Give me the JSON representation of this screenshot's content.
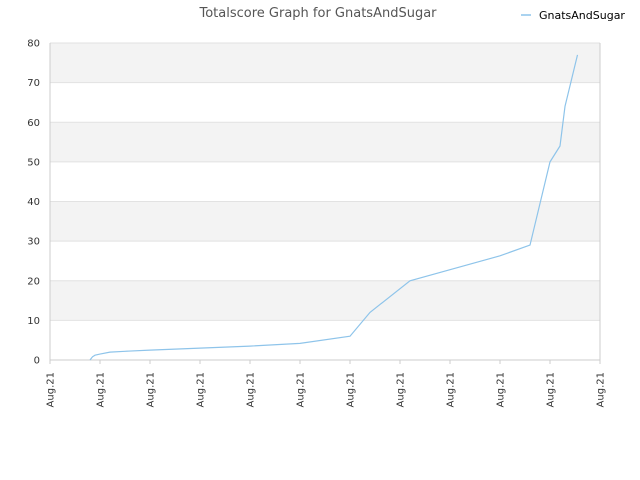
{
  "chart_data": {
    "type": "line",
    "title": "Totalscore Graph for GnatsAndSugar",
    "xlabel": "",
    "ylabel": "",
    "ylim": [
      0,
      80
    ],
    "yticks": [
      0,
      10,
      20,
      30,
      40,
      50,
      60,
      70,
      80
    ],
    "xtick_labels": [
      "Aug.21",
      "Aug.21",
      "Aug.21",
      "Aug.21",
      "Aug.21",
      "Aug.21",
      "Aug.21",
      "Aug.21",
      "Aug.21",
      "Aug.21",
      "Aug.21",
      "Aug.21"
    ],
    "grid": "horizontal bands",
    "legend": {
      "position": "top-right"
    },
    "colors": {
      "line": "#8ec4ea",
      "band": "#f3f3f3",
      "grid": "#e2e2e2",
      "axis": "#cccccc"
    },
    "series": [
      {
        "name": "GnatsAndSugar",
        "x": [
          0.8,
          0.85,
          0.9,
          1.0,
          1.2,
          1.5,
          2.0,
          3.0,
          4.0,
          5.0,
          6.0,
          6.4,
          7.2,
          8.0,
          9.0,
          9.6,
          10.0,
          10.2,
          10.3,
          10.55
        ],
        "y": [
          0,
          0.8,
          1.2,
          1.5,
          2.0,
          2.2,
          2.5,
          3.0,
          3.5,
          4.2,
          6.0,
          12.0,
          20.0,
          22.8,
          26.3,
          29.0,
          50.0,
          54.0,
          64.0,
          77.0
        ]
      }
    ]
  }
}
